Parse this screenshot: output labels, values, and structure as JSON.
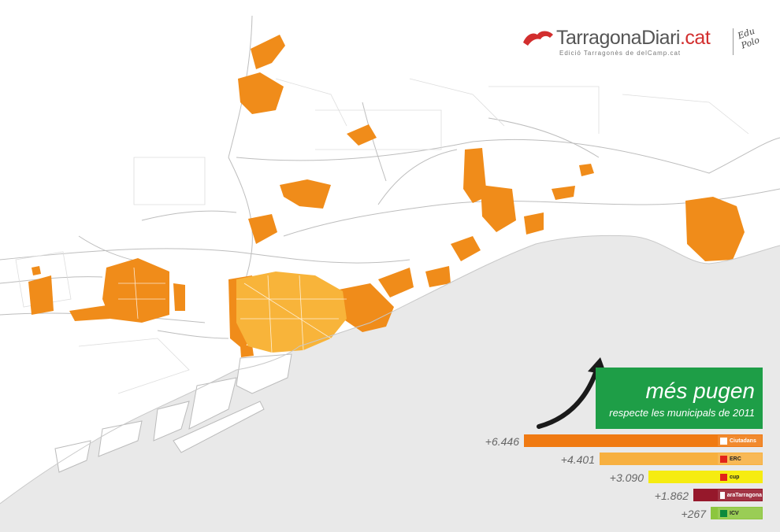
{
  "logo": {
    "title_main": "TarragonaDiari",
    "title_accent": ".cat",
    "subtitle": "Edició Tarragonès de delCamp.cat",
    "author_signature": "Edu Polo",
    "brand_color": "#d22e2e"
  },
  "banner": {
    "title": "més pugen",
    "subtitle": "respecte les municipals de 2011",
    "color": "#1e9e47",
    "icon": "up-arrow-icon"
  },
  "chart_data": {
    "type": "bar",
    "categories": [
      "Ciutadans",
      "ERC",
      "CUP",
      "araTarragona",
      "ICV"
    ],
    "values": [
      6446,
      4401,
      3090,
      1862,
      267
    ],
    "labels": [
      "+6.446",
      "+4.401",
      "+3.090",
      "+1.862",
      "+267"
    ],
    "colors": [
      "#f07a12",
      "#f7b040",
      "#f6ec10",
      "#96182b",
      "#8cc63e"
    ],
    "party_badges": [
      "Ciutadans",
      "ERC",
      "cup",
      "araTarragona",
      "ICV"
    ]
  },
  "map": {
    "land_color": "#ffffff",
    "sea_color": "#e9e9e9",
    "highlight_color": "#f08c1a",
    "center_color": "#f8b43a"
  }
}
